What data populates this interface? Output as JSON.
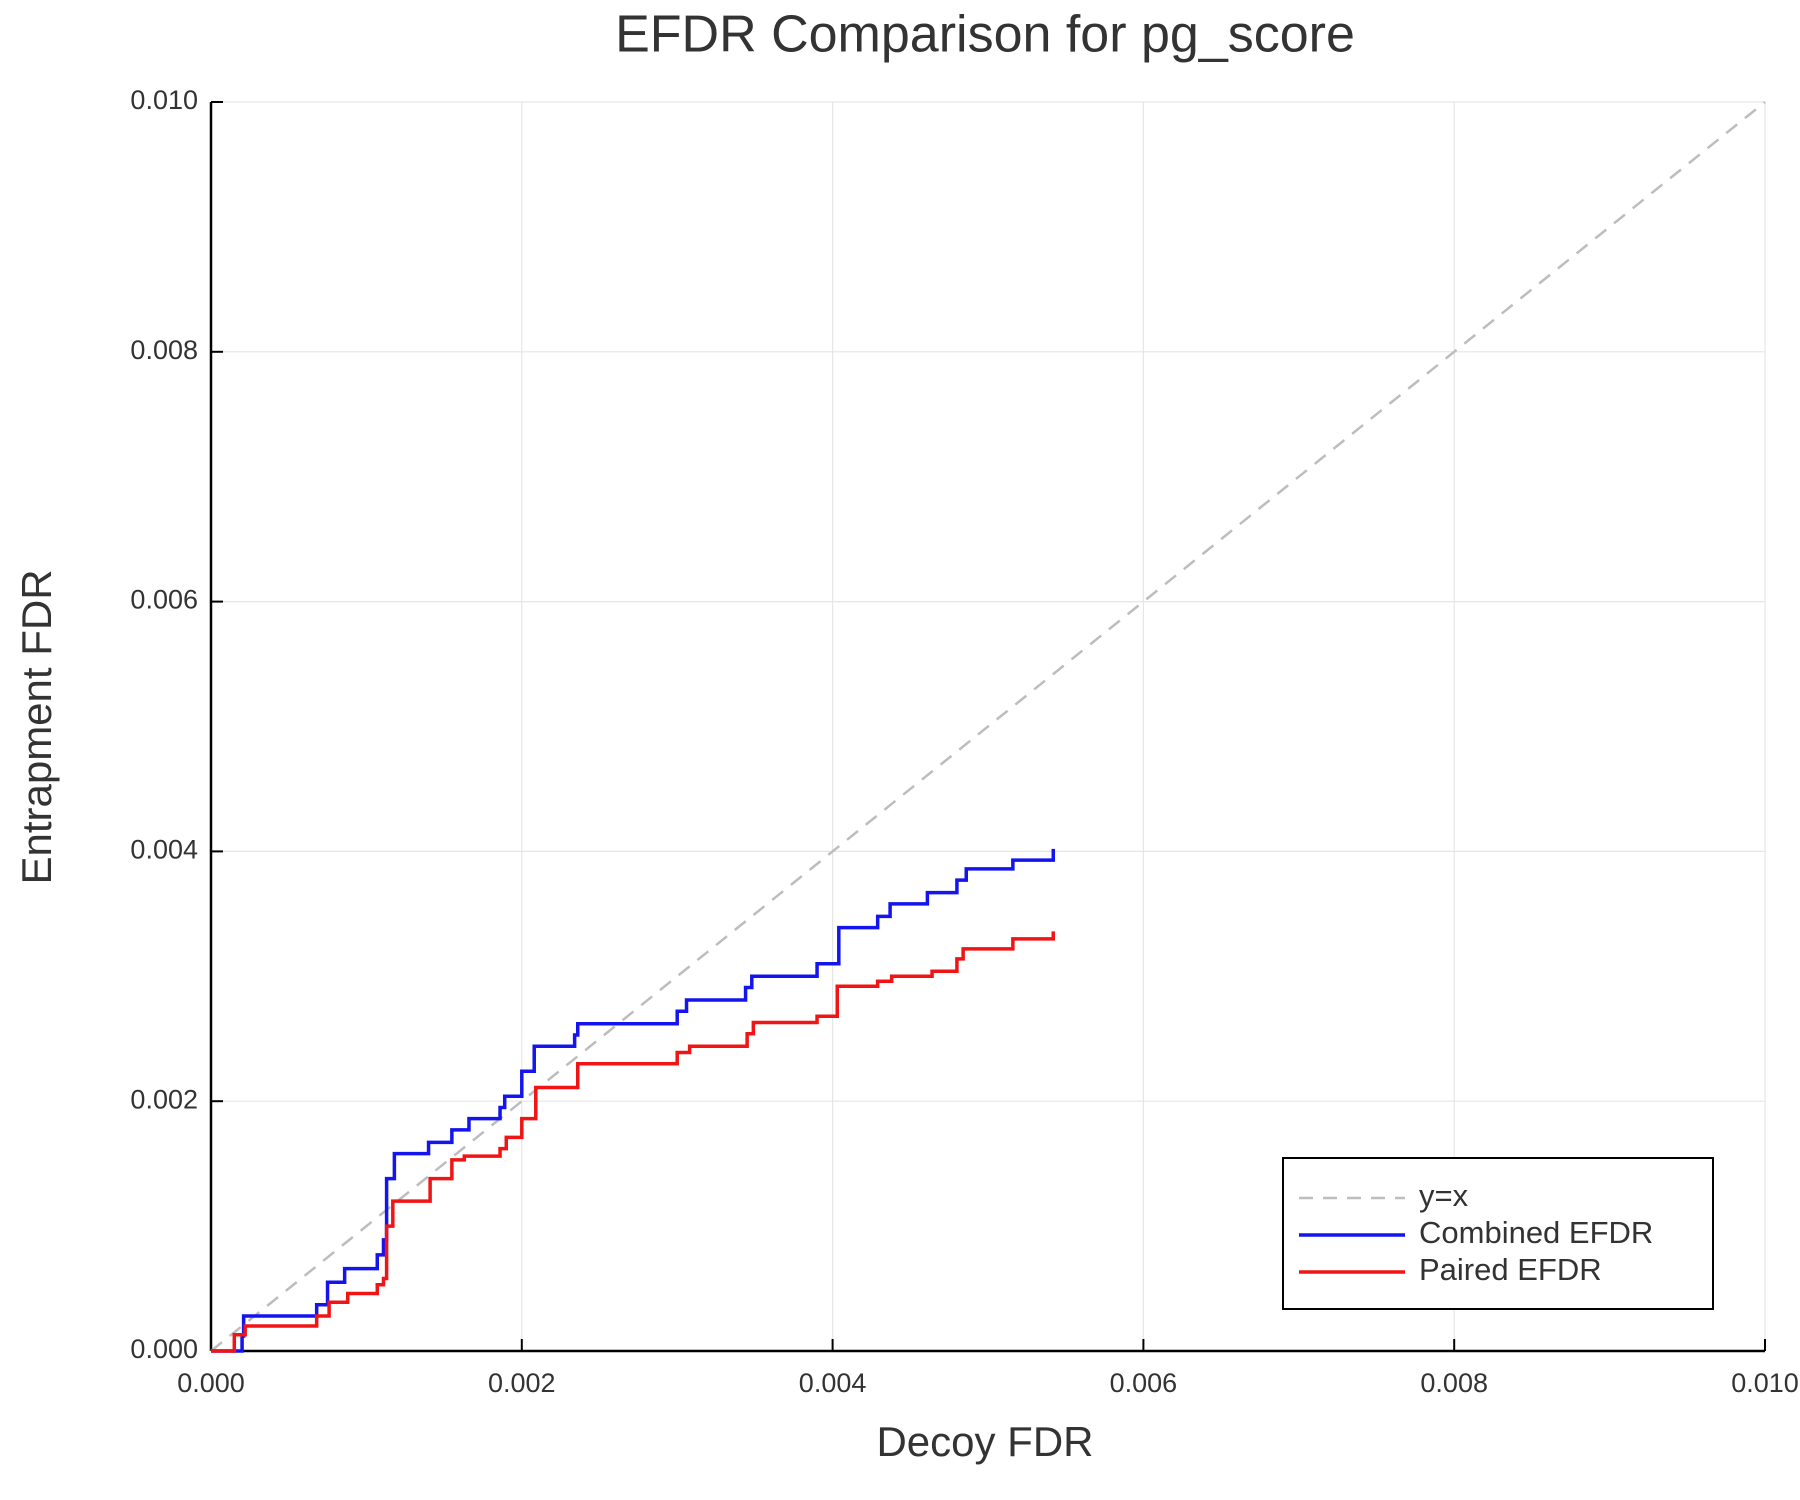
{
  "chart_data": {
    "type": "line",
    "title": "EFDR Comparison for pg_score",
    "x_label": "Decoy FDR",
    "y_label": "Entrapment FDR",
    "xlim": [
      0,
      0.01
    ],
    "ylim": [
      0,
      0.01
    ],
    "xticks": [
      {
        "value": 0,
        "label": "0.000"
      },
      0.002,
      0.004,
      0.006,
      0.008,
      {
        "value": 0.01,
        "label": "0.010"
      }
    ],
    "yticks": [
      {
        "value": 0,
        "label": "0.000"
      },
      0.002,
      0.004,
      0.006,
      0.008,
      {
        "value": 0.01,
        "label": "0.010"
      }
    ],
    "grid": true,
    "legend": "lower right",
    "series": [
      {
        "name": "y=x",
        "color": "#bdbdbd",
        "style": "dashed",
        "x": [
          0,
          0.01
        ],
        "values": [
          0,
          0.01
        ]
      },
      {
        "name": "Combined EFDR",
        "color": "#1414ee",
        "style": "solid",
        "x": [
          0,
          0.0002,
          0.0002,
          0.00021,
          0.00021,
          0.00068,
          0.00068,
          0.00075,
          0.00075,
          0.00086,
          0.00086,
          0.00107,
          0.00107,
          0.00111,
          0.00111,
          0.00113,
          0.00113,
          0.00118,
          0.00118,
          0.0014,
          0.0014,
          0.00155,
          0.00155,
          0.00166,
          0.00166,
          0.00186,
          0.00186,
          0.00189,
          0.00189,
          0.002,
          0.002,
          0.00208,
          0.00208,
          0.00234,
          0.00234,
          0.00236,
          0.00236,
          0.003,
          0.003,
          0.00306,
          0.00306,
          0.00344,
          0.00344,
          0.00348,
          0.00348,
          0.0039,
          0.0039,
          0.00404,
          0.00404,
          0.00429,
          0.00429,
          0.00437,
          0.00437,
          0.00461,
          0.00461,
          0.0048,
          0.0048,
          0.00486,
          0.00486,
          0.00516,
          0.00516,
          0.00542,
          0.00542
        ],
        "values": [
          0,
          0,
          0.00012,
          0.00012,
          0.00028,
          0.00028,
          0.00037,
          0.00037,
          0.00055,
          0.00055,
          0.00066,
          0.00066,
          0.00077,
          0.00077,
          0.00089,
          0.00089,
          0.00138,
          0.00138,
          0.00158,
          0.00158,
          0.00167,
          0.00167,
          0.00177,
          0.00177,
          0.00186,
          0.00186,
          0.00195,
          0.00195,
          0.00204,
          0.00204,
          0.00224,
          0.00224,
          0.00244,
          0.00244,
          0.00253,
          0.00253,
          0.00262,
          0.00262,
          0.00272,
          0.00272,
          0.00281,
          0.00281,
          0.00291,
          0.00291,
          0.003,
          0.003,
          0.0031,
          0.0031,
          0.00339,
          0.00339,
          0.00348,
          0.00348,
          0.00358,
          0.00358,
          0.00367,
          0.00367,
          0.00377,
          0.00377,
          0.00386,
          0.00386,
          0.00393,
          0.00393,
          0.00402
        ]
      },
      {
        "name": "Paired EFDR",
        "color": "#f01414",
        "style": "solid",
        "x": [
          0,
          0.00015,
          0.00015,
          0.00022,
          0.00022,
          0.00068,
          0.00068,
          0.00076,
          0.00076,
          0.00088,
          0.00088,
          0.00107,
          0.00107,
          0.00111,
          0.00111,
          0.00113,
          0.00113,
          0.00117,
          0.00117,
          0.00141,
          0.00141,
          0.00155,
          0.00155,
          0.00163,
          0.00163,
          0.00186,
          0.00186,
          0.0019,
          0.0019,
          0.002,
          0.002,
          0.00209,
          0.00209,
          0.00236,
          0.00236,
          0.003,
          0.003,
          0.00308,
          0.00308,
          0.00345,
          0.00345,
          0.00349,
          0.00349,
          0.0039,
          0.0039,
          0.00403,
          0.00403,
          0.00429,
          0.00429,
          0.00438,
          0.00438,
          0.00464,
          0.00464,
          0.0048,
          0.0048,
          0.00484,
          0.00484,
          0.00516,
          0.00516,
          0.00542,
          0.00542
        ],
        "values": [
          0,
          0,
          0.00013,
          0.00013,
          0.0002,
          0.0002,
          0.00028,
          0.00028,
          0.00039,
          0.00039,
          0.00046,
          0.00046,
          0.00053,
          0.00053,
          0.00058,
          0.00058,
          0.001,
          0.001,
          0.0012,
          0.0012,
          0.00138,
          0.00138,
          0.00153,
          0.00153,
          0.00156,
          0.00156,
          0.00162,
          0.00162,
          0.00171,
          0.00171,
          0.00186,
          0.00186,
          0.00211,
          0.00211,
          0.0023,
          0.0023,
          0.00239,
          0.00239,
          0.00244,
          0.00244,
          0.00254,
          0.00254,
          0.00263,
          0.00263,
          0.00268,
          0.00268,
          0.00292,
          0.00292,
          0.00296,
          0.00296,
          0.003,
          0.003,
          0.00304,
          0.00304,
          0.00314,
          0.00314,
          0.00322,
          0.00322,
          0.0033,
          0.0033,
          0.00336
        ]
      }
    ]
  }
}
